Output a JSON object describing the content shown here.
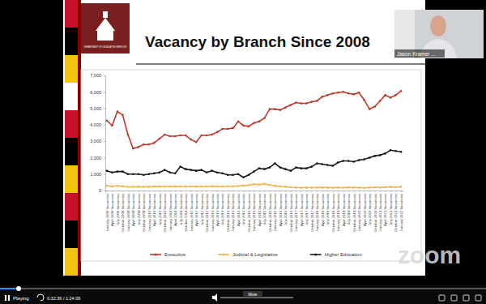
{
  "player": {
    "presenter": "Jason Kramer ...",
    "status": "Playing",
    "time": "0:32:36 / 1:24:06",
    "mute": "Mute",
    "brand": "zoom"
  },
  "slide": {
    "logo_text": "DEPARTMENT OF LEGISLATIVE SERVICES"
  },
  "chart_data": {
    "type": "line",
    "title": "Vacancy by Branch Since 2008",
    "categories": [
      "January 2008 Vacancies",
      "April 2008 Vacancies",
      "July 2008 Vacancies",
      "October 2008 Vacancies",
      "January 2009 Vacancies",
      "April 2009 Vacancies",
      "July 2009 Vacancies",
      "October 2009 Vacancies",
      "January 2010 Vacancies",
      "April 2010 Vacancies",
      "July 2010 Vacancies",
      "October 2010 Vacancies",
      "January 2011 Vacancies",
      "April 2011 Vacancies",
      "July 2011 Vacancies",
      "October 2011 Vacancies",
      "January 2012 Vacancies",
      "April 2012 Vacancies",
      "July 2012 Vacancies",
      "October 2012 Vacancies",
      "January 2013 Vacancies",
      "April 2013 Vacancies",
      "July 2013 Vacancies",
      "October 2013 Vacancies",
      "January 2014 Vacancies",
      "April 2014 Vacancies",
      "July 2014 Vacancies",
      "October 2014 Vacancies",
      "January 2015 Vacancies",
      "April 2015 Vacancies",
      "July 2015 Vacancies",
      "October 2015 Vacancies",
      "January 2016 Vacancies",
      "April 2016 Vacancies",
      "July 2016 Vacancies",
      "October 2016 Vacancies",
      "January 2017 Vacancies",
      "April 2017 Vacancies",
      "July 2017 Vacancies",
      "October 2017 Vacancies",
      "January 2018 Vacancies",
      "April 2018 Vacancies",
      "July 2018 Vacancies",
      "October 2018 Vacancies",
      "January 2019 Vacancies",
      "April 2019 Vacancies",
      "July 2019 Vacancies",
      "October 2019 Vacancies",
      "January 2020 Vacancies",
      "April 2020 Vacancies",
      "July 2020 Vacancies",
      "October 2020 Vacancies",
      "January 2021 Vacancies",
      "April 2021 Vacancies",
      "July 2021 Vacancies",
      "October 2021 Vacancies",
      "January 2022 Vacancies"
    ],
    "series": [
      {
        "name": "Executive",
        "color": "#c0392b",
        "marker": "circle",
        "values": [
          4250,
          3950,
          4800,
          4600,
          3400,
          2550,
          2650,
          2800,
          2800,
          2900,
          3150,
          3400,
          3300,
          3300,
          3350,
          3350,
          3100,
          2950,
          3350,
          3350,
          3400,
          3550,
          3750,
          3750,
          3800,
          4200,
          3950,
          3900,
          4100,
          4200,
          4400,
          4950,
          4950,
          4900,
          5050,
          5200,
          5350,
          5300,
          5300,
          5400,
          5450,
          5700,
          5800,
          5900,
          5950,
          6000,
          5900,
          5850,
          5950,
          5500,
          4950,
          5100,
          5450,
          5800,
          5650,
          5800,
          6050
        ]
      },
      {
        "name": "Judicial & Legislative",
        "color": "#f0b552",
        "marker": "circle",
        "values": [
          300,
          250,
          280,
          260,
          220,
          220,
          230,
          220,
          230,
          240,
          240,
          250,
          250,
          240,
          250,
          250,
          250,
          240,
          250,
          250,
          260,
          250,
          250,
          250,
          260,
          270,
          300,
          320,
          380,
          360,
          400,
          330,
          280,
          250,
          230,
          200,
          180,
          170,
          180,
          170,
          180,
          190,
          180,
          170,
          180,
          170,
          190,
          180,
          170,
          160,
          180,
          200,
          190,
          200,
          220,
          210,
          230
        ]
      },
      {
        "name": "Higher Education",
        "color": "#1a1a1a",
        "marker": "circle",
        "values": [
          1200,
          1100,
          1150,
          1150,
          1000,
          1000,
          1000,
          950,
          1000,
          1050,
          1100,
          1250,
          1100,
          1050,
          1450,
          1300,
          1250,
          1200,
          1250,
          1100,
          1200,
          1100,
          1050,
          950,
          950,
          1000,
          800,
          950,
          1150,
          1350,
          1300,
          1400,
          1650,
          1400,
          1300,
          1200,
          1400,
          1350,
          1350,
          1450,
          1650,
          1600,
          1550,
          1500,
          1700,
          1800,
          1800,
          1750,
          1850,
          1900,
          2000,
          2100,
          2150,
          2250,
          2450,
          2400,
          2350
        ]
      }
    ],
    "ylim": [
      0,
      7000
    ],
    "yticks": [
      0,
      {
        "value": 1000,
        "label": "1,000"
      },
      {
        "value": 2000,
        "label": "2,000"
      },
      {
        "value": 3000,
        "label": "3,000"
      },
      {
        "value": 4000,
        "label": "4,000"
      },
      {
        "value": 5000,
        "label": "5,000"
      },
      {
        "value": 6000,
        "label": "6,000"
      },
      {
        "value": 7000,
        "label": "7,000"
      }
    ],
    "grid": false,
    "legend": "bottom"
  }
}
